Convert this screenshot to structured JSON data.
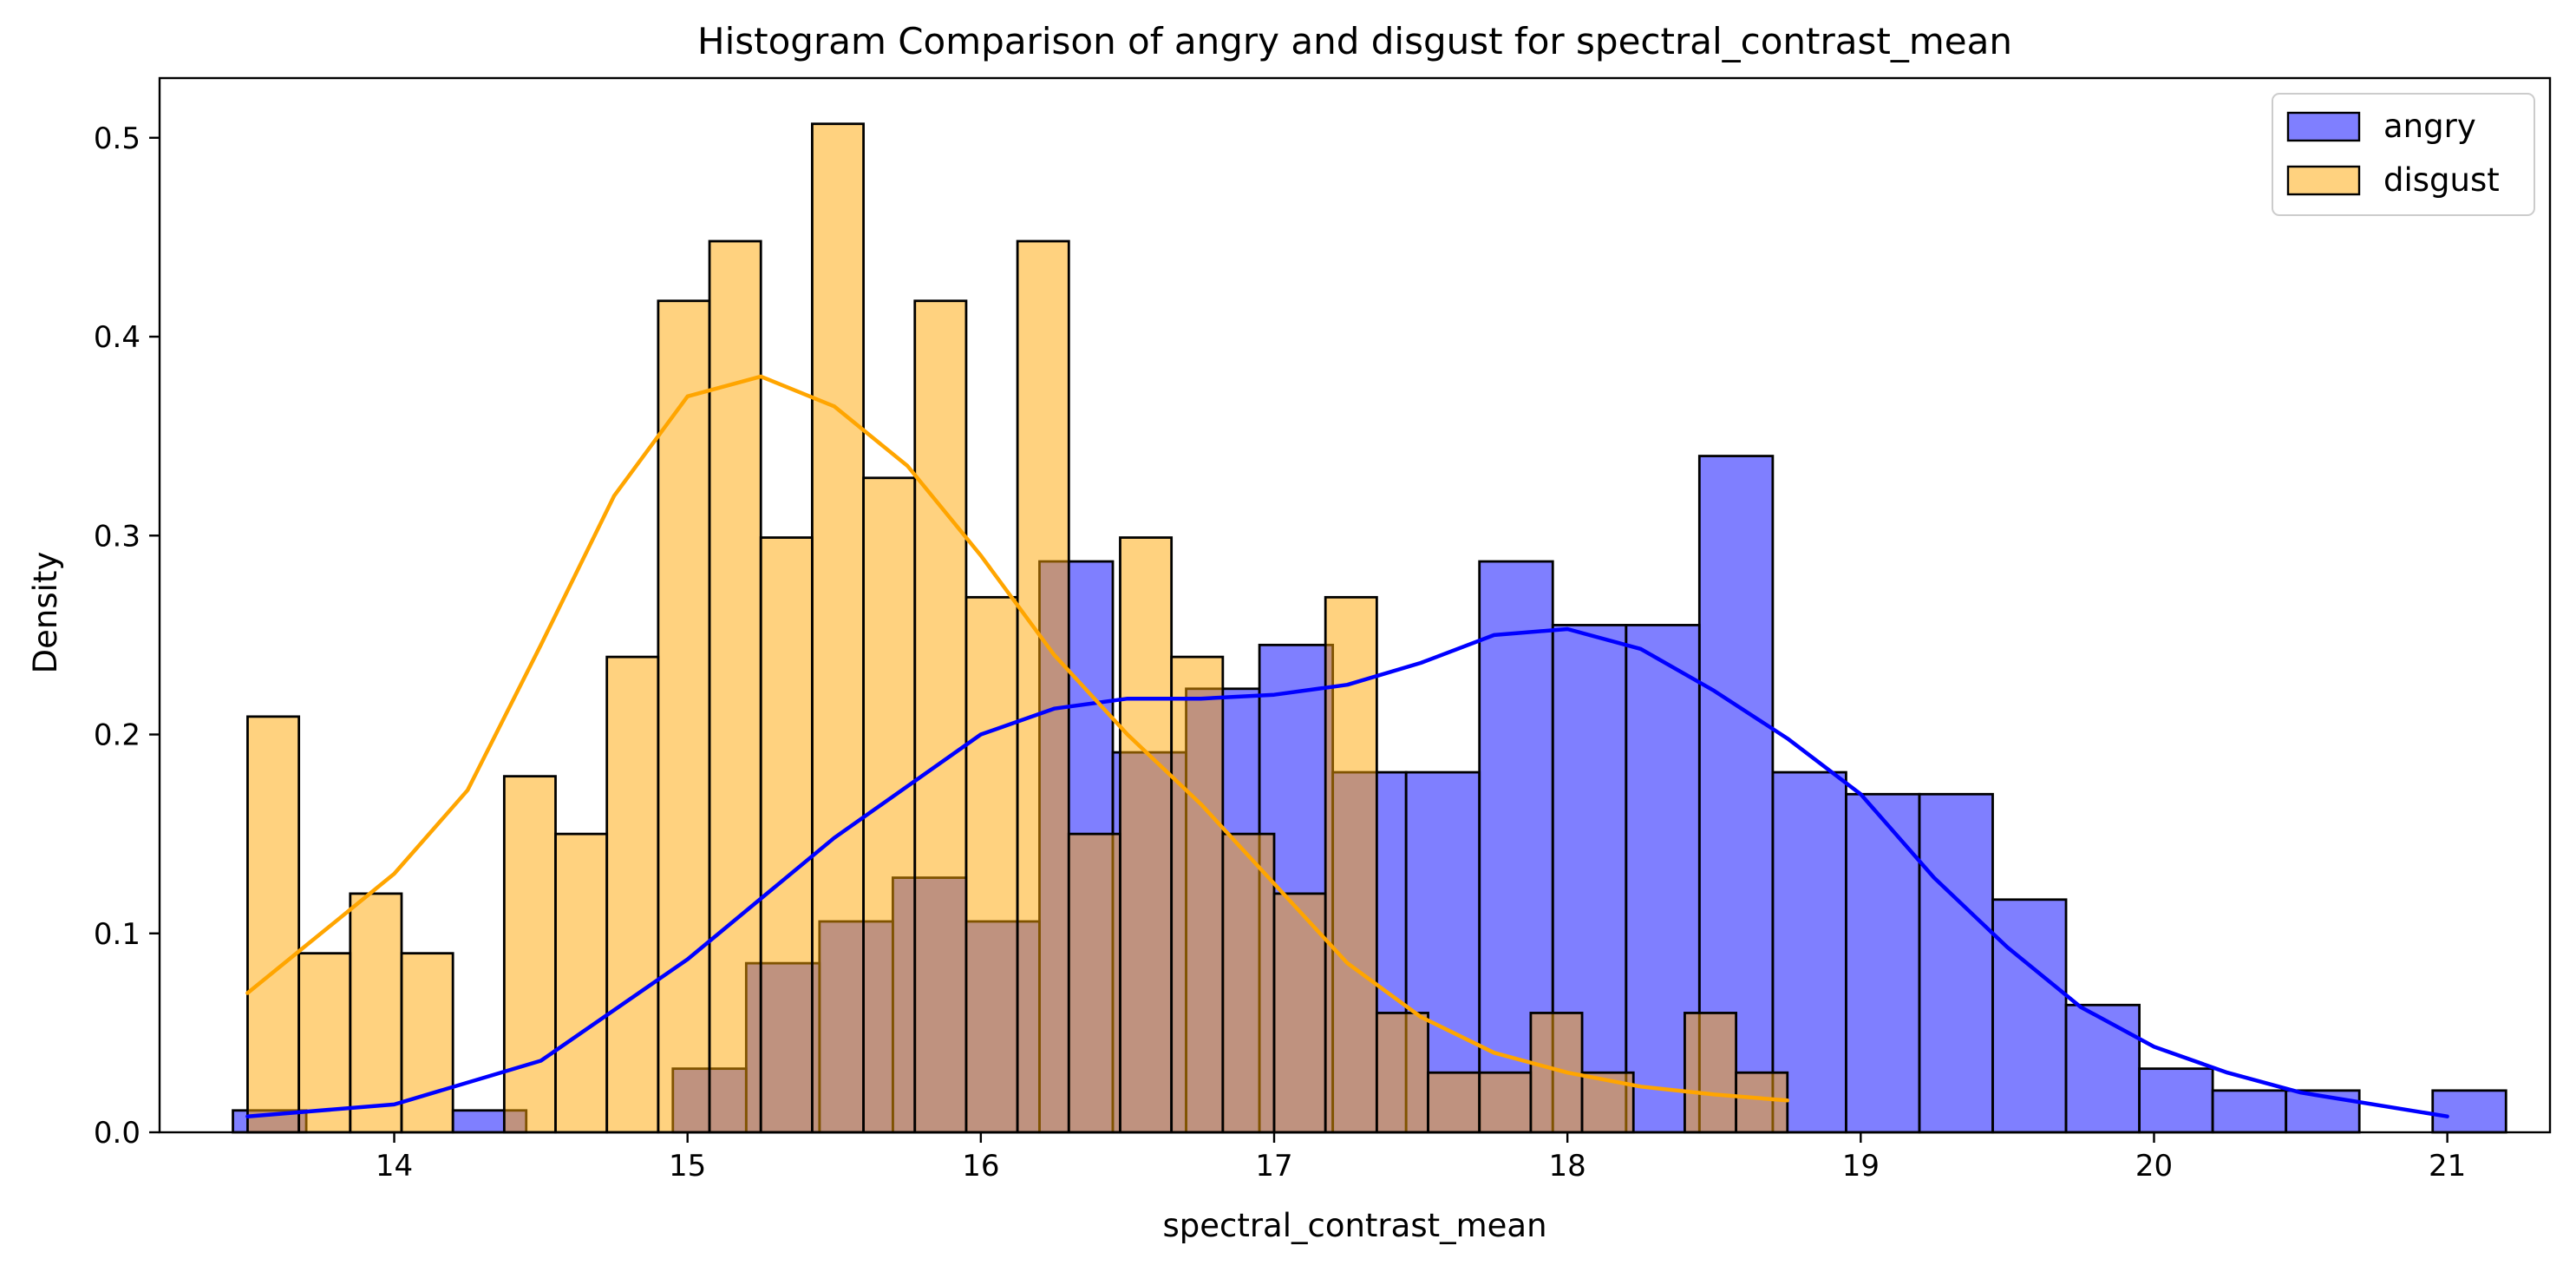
{
  "chart_data": {
    "type": "bar",
    "subtype": "histogram-with-kde",
    "title": "Histogram Comparison of angry and disgust for spectral_contrast_mean",
    "xlabel": "spectral_contrast_mean",
    "ylabel": "Density",
    "xlim": [
      13.2,
      21.35
    ],
    "ylim": [
      0,
      0.53
    ],
    "xticks": [
      14,
      15,
      16,
      17,
      18,
      19,
      20,
      21
    ],
    "yticks": [
      0.0,
      0.1,
      0.2,
      0.3,
      0.4,
      0.5
    ],
    "grid": false,
    "legend_position": "top-right",
    "series": [
      {
        "name": "angry",
        "color": "#0000ff",
        "bin_start": 13.45,
        "bin_width": 0.25,
        "values": [
          0.011,
          0.0,
          0.0,
          0.011,
          0.0,
          0.0,
          0.032,
          0.085,
          0.106,
          0.128,
          0.106,
          0.287,
          0.191,
          0.223,
          0.245,
          0.181,
          0.181,
          0.287,
          0.255,
          0.255,
          0.34,
          0.181,
          0.17,
          0.17,
          0.117,
          0.064,
          0.032,
          0.021,
          0.021,
          0.0,
          0.021
        ],
        "kde_x": [
          13.5,
          14.0,
          14.5,
          15.0,
          15.5,
          16.0,
          16.25,
          16.5,
          16.75,
          17.0,
          17.25,
          17.5,
          17.75,
          18.0,
          18.25,
          18.5,
          18.75,
          19.0,
          19.25,
          19.5,
          19.75,
          20.0,
          20.25,
          20.5,
          21.0
        ],
        "kde_y": [
          0.008,
          0.014,
          0.036,
          0.087,
          0.148,
          0.2,
          0.213,
          0.218,
          0.218,
          0.22,
          0.225,
          0.236,
          0.25,
          0.253,
          0.243,
          0.222,
          0.198,
          0.17,
          0.128,
          0.093,
          0.063,
          0.043,
          0.03,
          0.02,
          0.008
        ]
      },
      {
        "name": "disgust",
        "color": "#ffa500",
        "bin_start": 13.5,
        "bin_width": 0.175,
        "values": [
          0.209,
          0.09,
          0.12,
          0.09,
          0.0,
          0.179,
          0.15,
          0.239,
          0.418,
          0.448,
          0.299,
          0.507,
          0.329,
          0.418,
          0.269,
          0.448,
          0.15,
          0.299,
          0.239,
          0.15,
          0.12,
          0.269,
          0.06,
          0.03,
          0.03,
          0.06,
          0.03,
          0.0,
          0.06,
          0.03
        ],
        "kde_x": [
          13.5,
          13.75,
          14.0,
          14.25,
          14.5,
          14.75,
          15.0,
          15.25,
          15.5,
          15.75,
          16.0,
          16.25,
          16.5,
          16.75,
          17.0,
          17.25,
          17.5,
          17.75,
          18.0,
          18.25,
          18.5,
          18.75
        ],
        "kde_y": [
          0.07,
          0.1,
          0.13,
          0.172,
          0.245,
          0.32,
          0.37,
          0.38,
          0.365,
          0.335,
          0.29,
          0.24,
          0.2,
          0.165,
          0.125,
          0.085,
          0.058,
          0.04,
          0.03,
          0.023,
          0.019,
          0.016
        ]
      }
    ]
  }
}
